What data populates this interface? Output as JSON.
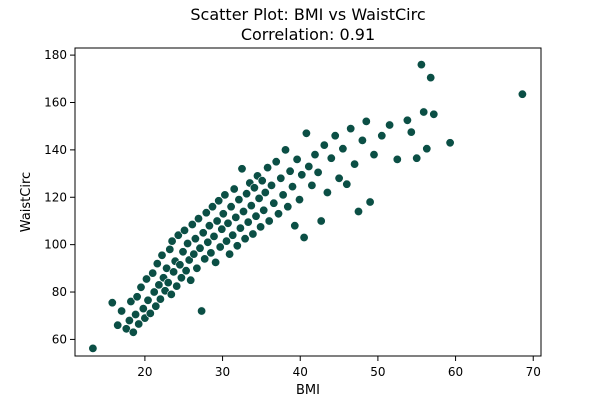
{
  "chart_data": {
    "type": "scatter",
    "title": "Scatter Plot: BMI vs WaistCirc",
    "subtitle": "Correlation: 0.91",
    "xlabel": "BMI",
    "ylabel": "WaistCirc",
    "xlim": [
      11,
      71
    ],
    "ylim": [
      53,
      183
    ],
    "xticks": [
      20,
      30,
      40,
      50,
      60,
      70
    ],
    "yticks": [
      60,
      80,
      100,
      120,
      140,
      160,
      180
    ],
    "grid": false,
    "point_color": "#0b4f45",
    "point_edge_color": "#ffffff",
    "points": [
      [
        13.3,
        56.2
      ],
      [
        15.8,
        75.5
      ],
      [
        16.5,
        66.0
      ],
      [
        17.0,
        72.0
      ],
      [
        17.6,
        64.5
      ],
      [
        18.0,
        68.0
      ],
      [
        18.2,
        76.0
      ],
      [
        18.5,
        63.0
      ],
      [
        18.8,
        70.5
      ],
      [
        19.0,
        78.0
      ],
      [
        19.2,
        66.5
      ],
      [
        19.5,
        82.0
      ],
      [
        19.8,
        73.0
      ],
      [
        20.0,
        69.0
      ],
      [
        20.2,
        85.5
      ],
      [
        20.4,
        76.5
      ],
      [
        20.7,
        71.0
      ],
      [
        21.0,
        88.0
      ],
      [
        21.2,
        80.0
      ],
      [
        21.4,
        74.0
      ],
      [
        21.6,
        92.0
      ],
      [
        21.8,
        83.0
      ],
      [
        22.0,
        77.0
      ],
      [
        22.2,
        95.5
      ],
      [
        22.4,
        86.0
      ],
      [
        22.6,
        80.5
      ],
      [
        22.8,
        90.0
      ],
      [
        23.0,
        84.0
      ],
      [
        23.2,
        98.0
      ],
      [
        23.4,
        79.0
      ],
      [
        23.5,
        101.5
      ],
      [
        23.7,
        88.5
      ],
      [
        23.9,
        93.0
      ],
      [
        24.1,
        82.5
      ],
      [
        24.3,
        104.0
      ],
      [
        24.5,
        91.5
      ],
      [
        24.7,
        86.0
      ],
      [
        24.9,
        97.0
      ],
      [
        25.1,
        106.0
      ],
      [
        25.3,
        89.0
      ],
      [
        25.5,
        100.5
      ],
      [
        25.7,
        93.5
      ],
      [
        25.9,
        85.0
      ],
      [
        26.1,
        108.5
      ],
      [
        26.3,
        96.0
      ],
      [
        26.5,
        102.5
      ],
      [
        26.7,
        90.0
      ],
      [
        26.9,
        111.0
      ],
      [
        27.1,
        98.5
      ],
      [
        27.3,
        72.0
      ],
      [
        27.5,
        105.0
      ],
      [
        27.7,
        94.0
      ],
      [
        27.9,
        113.5
      ],
      [
        28.1,
        101.0
      ],
      [
        28.3,
        108.0
      ],
      [
        28.5,
        96.5
      ],
      [
        28.7,
        116.0
      ],
      [
        28.9,
        103.5
      ],
      [
        29.1,
        92.5
      ],
      [
        29.3,
        110.0
      ],
      [
        29.5,
        118.5
      ],
      [
        29.7,
        99.0
      ],
      [
        29.9,
        106.5
      ],
      [
        30.1,
        113.0
      ],
      [
        30.3,
        121.0
      ],
      [
        30.5,
        101.5
      ],
      [
        30.7,
        109.0
      ],
      [
        30.9,
        96.0
      ],
      [
        31.1,
        116.0
      ],
      [
        31.3,
        104.0
      ],
      [
        31.5,
        123.5
      ],
      [
        31.7,
        111.5
      ],
      [
        31.9,
        99.5
      ],
      [
        32.1,
        119.0
      ],
      [
        32.3,
        107.0
      ],
      [
        32.5,
        132.0
      ],
      [
        32.7,
        114.0
      ],
      [
        32.9,
        102.5
      ],
      [
        33.1,
        121.5
      ],
      [
        33.3,
        109.5
      ],
      [
        33.5,
        126.0
      ],
      [
        33.7,
        116.5
      ],
      [
        33.9,
        104.5
      ],
      [
        34.1,
        124.0
      ],
      [
        34.3,
        112.0
      ],
      [
        34.5,
        129.0
      ],
      [
        34.7,
        119.5
      ],
      [
        34.9,
        107.5
      ],
      [
        35.1,
        127.0
      ],
      [
        35.3,
        114.5
      ],
      [
        35.5,
        122.0
      ],
      [
        35.8,
        132.5
      ],
      [
        36.0,
        110.0
      ],
      [
        36.3,
        125.0
      ],
      [
        36.6,
        117.5
      ],
      [
        36.9,
        135.0
      ],
      [
        37.2,
        113.0
      ],
      [
        37.5,
        128.0
      ],
      [
        37.8,
        121.0
      ],
      [
        38.1,
        140.0
      ],
      [
        38.4,
        116.0
      ],
      [
        38.7,
        131.0
      ],
      [
        39.0,
        124.5
      ],
      [
        39.3,
        108.0
      ],
      [
        39.6,
        136.0
      ],
      [
        39.9,
        119.0
      ],
      [
        40.2,
        129.5
      ],
      [
        40.5,
        103.0
      ],
      [
        40.8,
        147.0
      ],
      [
        41.1,
        133.0
      ],
      [
        41.5,
        125.0
      ],
      [
        41.9,
        138.0
      ],
      [
        42.3,
        130.5
      ],
      [
        42.7,
        110.0
      ],
      [
        43.1,
        142.0
      ],
      [
        43.5,
        122.0
      ],
      [
        44.0,
        136.5
      ],
      [
        44.5,
        146.0
      ],
      [
        45.0,
        128.0
      ],
      [
        45.5,
        140.5
      ],
      [
        46.0,
        125.5
      ],
      [
        46.5,
        149.0
      ],
      [
        47.0,
        134.0
      ],
      [
        47.5,
        114.0
      ],
      [
        48.0,
        144.0
      ],
      [
        48.5,
        152.0
      ],
      [
        49.0,
        118.0
      ],
      [
        49.5,
        138.0
      ],
      [
        50.5,
        146.0
      ],
      [
        51.5,
        150.5
      ],
      [
        52.5,
        136.0
      ],
      [
        53.8,
        152.5
      ],
      [
        54.3,
        147.5
      ],
      [
        55.0,
        136.5
      ],
      [
        55.6,
        176.0
      ],
      [
        55.9,
        156.0
      ],
      [
        56.3,
        140.5
      ],
      [
        56.8,
        170.5
      ],
      [
        57.2,
        155.0
      ],
      [
        59.3,
        143.0
      ],
      [
        68.6,
        163.5
      ]
    ]
  }
}
